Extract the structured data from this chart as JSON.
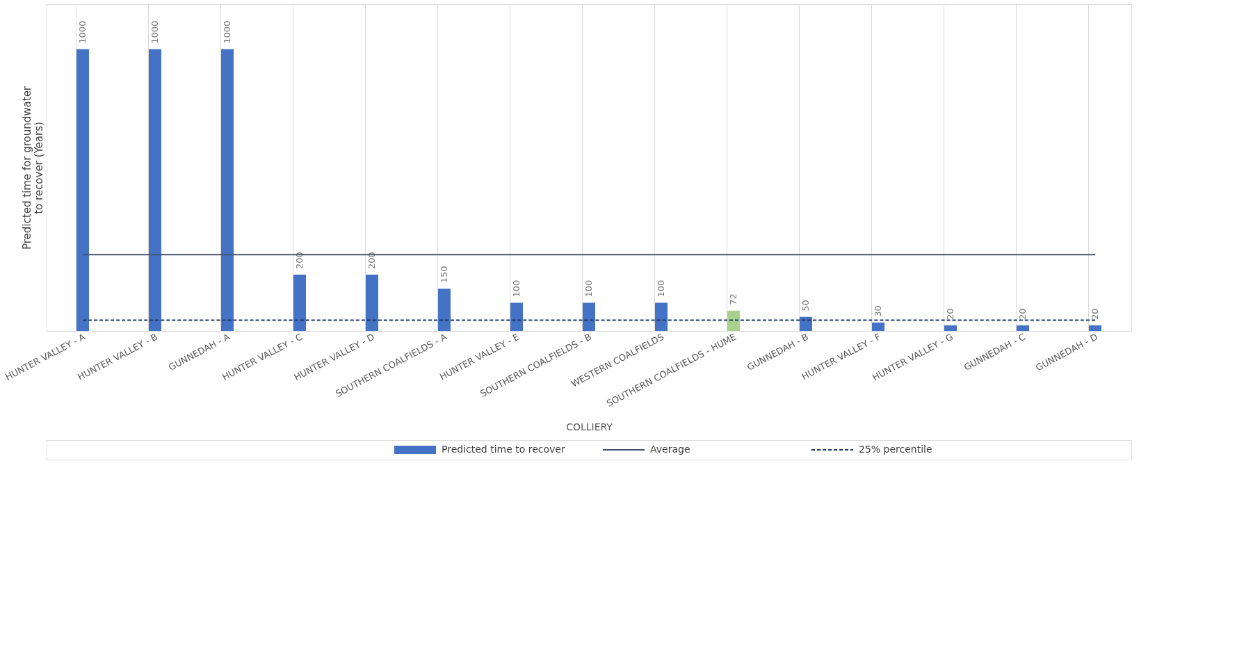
{
  "chart_data": {
    "type": "bar",
    "xlabel": "COLLIERY",
    "ylabel": "Predicted time for groundwater to recover (Years)",
    "categories": [
      "HUNTER VALLEY - A",
      "HUNTER VALLEY - B",
      "GUNNEDAH - A",
      "HUNTER VALLEY - C",
      "HUNTER VALLEY - D",
      "SOUTHERN COALFIELDS - A",
      "HUNTER VALLEY - E",
      "SOUTHERN COALFIELDS - B",
      "WESTERN COALFIELDS",
      "SOUTHERN COALFIELDS - HUME",
      "GUNNEDAH - B",
      "HUNTER VALLEY - F",
      "HUNTER VALLEY - G",
      "GUNNEDAH - C",
      "GUNNEDAH - D"
    ],
    "series": [
      {
        "name": "Predicted time to recover",
        "values": [
          1000,
          1000,
          1000,
          200,
          200,
          150,
          100,
          100,
          100,
          72,
          50,
          30,
          20,
          20,
          20
        ],
        "value_labels": [
          "1000",
          "1000",
          "1000",
          "200",
          "200",
          "150",
          "100",
          "100",
          "100",
          "72",
          "50",
          "30",
          "20",
          "20",
          "20"
        ],
        "colors": [
          "#4472c4",
          "#4472c4",
          "#4472c4",
          "#4472c4",
          "#4472c4",
          "#4472c4",
          "#4472c4",
          "#4472c4",
          "#4472c4",
          "#a9d18e",
          "#4472c4",
          "#4472c4",
          "#4472c4",
          "#4472c4",
          "#4472c4"
        ]
      },
      {
        "name": "Average",
        "type": "line",
        "color": "#44546a",
        "line_style": "solid",
        "values": [
          271,
          271,
          271,
          271,
          271,
          271,
          271,
          271,
          271,
          271,
          271,
          271,
          271,
          271,
          271
        ]
      },
      {
        "name": "25% percentile",
        "type": "line",
        "color": "#1f3864",
        "line_style": "dashed",
        "values": [
          38,
          38,
          38,
          38,
          38,
          38,
          38,
          38,
          38,
          38,
          38,
          38,
          38,
          38,
          38
        ]
      }
    ],
    "grid": "x",
    "legend": "bottom",
    "tick_labels": "x"
  }
}
